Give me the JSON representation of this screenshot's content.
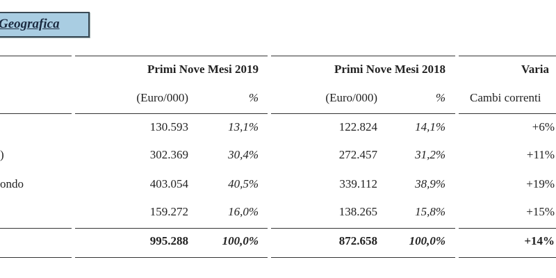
{
  "section": {
    "title": "Geografica"
  },
  "table": {
    "headers": [
      "Primi Nove Mesi 2019",
      "Primi Nove Mesi 2018",
      "Varia"
    ],
    "subheaders": [
      "(Euro/000)",
      "%",
      "(Euro/000)",
      "%",
      "Cambi correnti"
    ],
    "rows": [
      {
        "values": [
          "130.593",
          "13,1%",
          "122.824",
          "14,1%",
          "+6%"
        ]
      },
      {
        "label": ")",
        "values": [
          "302.369",
          "30,4%",
          "272.457",
          "31,2%",
          "+11%"
        ]
      },
      {
        "label": "ondo",
        "values": [
          "403.054",
          "40,5%",
          "339.112",
          "38,9%",
          "+19%"
        ]
      },
      {
        "values": [
          "159.272",
          "16,0%",
          "138.265",
          "15,8%",
          "+15%"
        ]
      }
    ],
    "total": {
      "values": [
        "995.288",
        "100,0%",
        "872.658",
        "100,0%",
        "+14%"
      ]
    }
  }
}
